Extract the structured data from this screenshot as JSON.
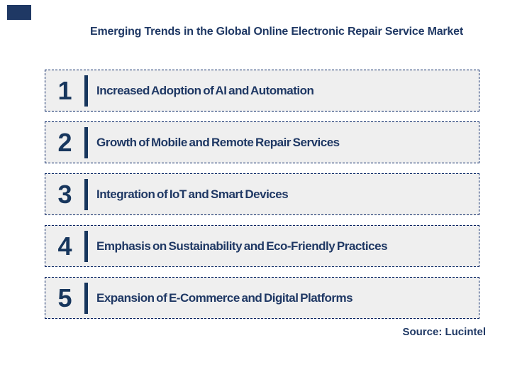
{
  "page": {
    "title": "Emerging Trends in the Global Online Electronic Repair Service Market",
    "source": "Source: Lucintel"
  },
  "colors": {
    "navy_text": "#1F3864",
    "navy_number": "#17365D",
    "row_fill": "#EFEFEF",
    "dashed_border": "#002060",
    "background": "#FFFFFF"
  },
  "trends": [
    {
      "number": "1",
      "label": "Increased Adoption of AI and Automation"
    },
    {
      "number": "2",
      "label": "Growth of Mobile and Remote Repair Services"
    },
    {
      "number": "3",
      "label": "Integration of IoT and Smart Devices"
    },
    {
      "number": "4",
      "label": "Emphasis on Sustainability and Eco-Friendly Practices"
    },
    {
      "number": "5",
      "label": "Expansion of E-Commerce and Digital Platforms"
    }
  ]
}
